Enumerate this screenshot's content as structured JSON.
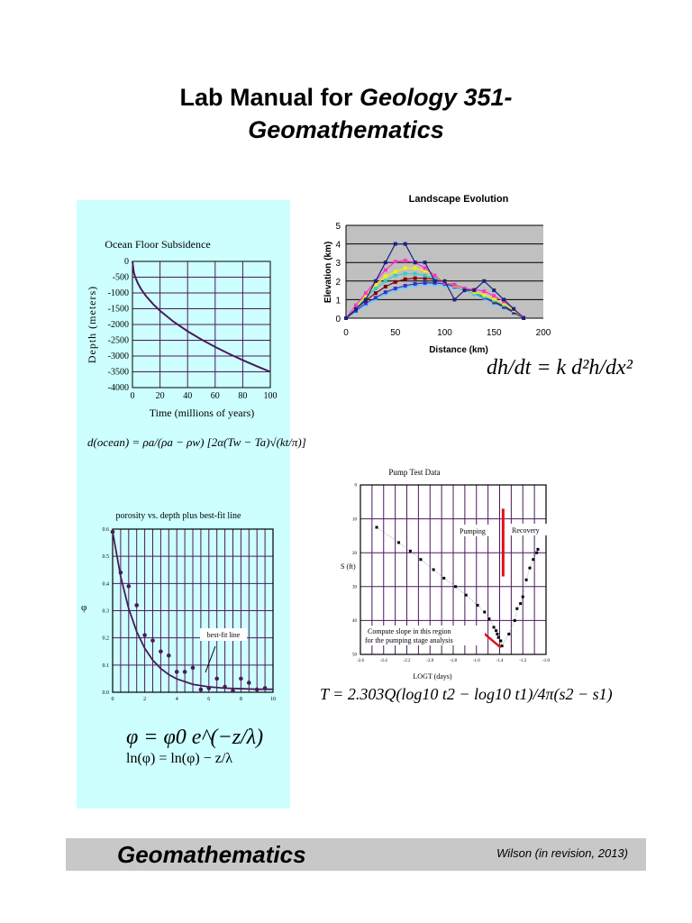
{
  "title": {
    "line1_plain": "Lab Manual for ",
    "line1_italic": "Geology 351-",
    "line2": "Geomathematics"
  },
  "footer": {
    "title": "Geomathematics",
    "credit": "Wilson (in revision, 2013)"
  },
  "colors": {
    "panel": "#ccfffe",
    "plot_line": "#4b1a5a",
    "footer": "#c8c8c8",
    "landscape_bg": "#c0c0c0",
    "red": "#e0101a"
  },
  "equations": {
    "ocean": "d(ocean) = ρa/(ρa − ρw) [2α(Tw − Ta)√(kt/π)]",
    "diffusion": "dh/dt = k d²h/dx²",
    "porosity1": "φ = φ0 e^(−z/λ)",
    "porosity2": "ln(φ) = ln(φ) − z/λ",
    "transmissivity": "T = 2.303Q(log10 t2 − log10 t1)/4π(s2 − s1)"
  },
  "chart_data": [
    {
      "id": "ocean",
      "type": "line",
      "title": "Ocean Floor Subsidence",
      "xlabel": "Time (millions of years)",
      "ylabel": "Depth (meters)",
      "xlim": [
        0,
        100
      ],
      "ylim": [
        -4000,
        0
      ],
      "grid": true,
      "xticks": [
        "0",
        "20",
        "40",
        "60",
        "80",
        "100"
      ],
      "yticks": [
        "0",
        "-500",
        "-1000",
        "-1500",
        "-2000",
        "-2500",
        "-3000",
        "-3500",
        "-4000"
      ],
      "series": [
        {
          "x": [
            0,
            1,
            2,
            4,
            6,
            8,
            10,
            15,
            20,
            30,
            40,
            50,
            60,
            70,
            80,
            90,
            100
          ],
          "y": [
            0,
            -350,
            -495,
            -700,
            -857,
            -990,
            -1107,
            -1356,
            -1565,
            -1917,
            -2214,
            -2475,
            -2711,
            -2928,
            -3130,
            -3320,
            -3500
          ]
        }
      ]
    },
    {
      "id": "porosity",
      "type": "scatter",
      "title": "porosity vs. depth plus best-fit line",
      "ylabel": "φ",
      "annotation": "best-fit line",
      "xlim": [
        0,
        10
      ],
      "ylim": [
        0,
        0.6
      ],
      "grid": true,
      "xticks": [
        "0",
        "2",
        "4",
        "6",
        "8",
        "10"
      ],
      "yticks": [
        "0.0",
        "0.1",
        "0.2",
        "0.3",
        "0.4",
        "0.5",
        "0.6"
      ],
      "points": {
        "x": [
          0,
          0.5,
          1,
          1.5,
          2,
          2.5,
          3,
          3.5,
          4,
          4.5,
          5,
          5.5,
          6,
          6.5,
          7,
          7.5,
          8,
          8.5,
          9,
          9.5
        ],
        "y": [
          0.59,
          0.44,
          0.39,
          0.32,
          0.21,
          0.19,
          0.15,
          0.135,
          0.075,
          0.075,
          0.09,
          0.01,
          0.015,
          0.05,
          0.02,
          0.005,
          0.05,
          0.035,
          0.01,
          0.015
        ]
      },
      "fit": {
        "x": [
          0,
          0.5,
          1,
          1.5,
          2,
          2.5,
          3,
          3.5,
          4,
          5,
          6,
          7,
          8,
          9,
          10
        ],
        "y": [
          0.59,
          0.426,
          0.308,
          0.223,
          0.162,
          0.118,
          0.087,
          0.065,
          0.049,
          0.029,
          0.02,
          0.015,
          0.013,
          0.011,
          0.011
        ]
      }
    },
    {
      "id": "landscape",
      "type": "line",
      "title": "Landscape Evolution",
      "xlabel": "Distance (km)",
      "ylabel": "Elevation (km)",
      "xlim": [
        0,
        200
      ],
      "ylim": [
        0,
        5
      ],
      "grid": true,
      "xticks": [
        "0",
        "50",
        "100",
        "150",
        "200"
      ],
      "yticks": [
        "0",
        "1",
        "2",
        "3",
        "4",
        "5"
      ],
      "x": [
        0,
        10,
        20,
        30,
        40,
        50,
        60,
        70,
        80,
        90,
        100,
        110,
        120,
        130,
        140,
        150,
        160,
        170,
        180
      ],
      "series": [
        {
          "color": "#1a237e",
          "values": [
            0,
            0.5,
            1,
            2,
            3,
            4,
            4,
            3,
            3,
            2,
            2,
            1,
            1.5,
            1.5,
            2,
            1.5,
            1,
            0.5,
            0
          ]
        },
        {
          "color": "#ff33cc",
          "values": [
            0,
            0.7,
            1.35,
            2,
            2.6,
            3.05,
            3.1,
            3,
            2.7,
            2.3,
            1.9,
            1.8,
            1.6,
            1.55,
            1.45,
            1.2,
            0.9,
            0.5,
            0.05
          ]
        },
        {
          "color": "#f2f200",
          "values": [
            0,
            0.6,
            1.2,
            1.8,
            2.25,
            2.5,
            2.7,
            2.7,
            2.55,
            2.3,
            2,
            1.75,
            1.55,
            1.4,
            1.25,
            1.05,
            0.8,
            0.45,
            0
          ]
        },
        {
          "color": "#33cccc",
          "values": [
            0,
            0.55,
            1.1,
            1.6,
            2,
            2.3,
            2.4,
            2.4,
            2.3,
            2.15,
            1.95,
            1.75,
            1.55,
            1.35,
            1.15,
            0.95,
            0.7,
            0.4,
            0
          ]
        },
        {
          "color": "#800000",
          "values": [
            0,
            0.5,
            0.95,
            1.35,
            1.7,
            1.95,
            2.1,
            2.15,
            2.15,
            2.1,
            1.95,
            1.8,
            1.6,
            1.4,
            1.15,
            0.9,
            0.65,
            0.35,
            0
          ]
        },
        {
          "color": "#3333cc",
          "values": [
            0,
            0.4,
            0.8,
            1.1,
            1.4,
            1.6,
            1.75,
            1.85,
            1.9,
            1.9,
            1.85,
            1.7,
            1.55,
            1.35,
            1.1,
            0.85,
            0.6,
            0.3,
            0
          ]
        },
        {
          "color": "#66ccff",
          "values": [
            0,
            0.35,
            0.7,
            1,
            1.3,
            1.5,
            1.65,
            1.75,
            1.8,
            1.8,
            1.75,
            1.65,
            1.5,
            1.3,
            1.05,
            0.8,
            0.55,
            0.3,
            0
          ]
        }
      ]
    },
    {
      "id": "pump",
      "type": "scatter",
      "title": "Pump Test Data",
      "xlabel": "LOGT (days)",
      "ylabel": "S (ft)",
      "xlim": [
        -2.6,
        -1.0
      ],
      "ylim": [
        0,
        50
      ],
      "y_inverted": true,
      "grid": true,
      "xticks": [
        "-2.6",
        "-2.4",
        "-2.2",
        "-2.0",
        "-1.8",
        "-1.6",
        "-1.4",
        "-1.2",
        "-1.0"
      ],
      "yticks": [
        "0",
        "10",
        "20",
        "30",
        "40",
        "50"
      ],
      "labels": {
        "pumping": "Pumping",
        "recovery": "Recovery",
        "note1": "Compute slope in this region",
        "note2": "for the pumping stage analysis"
      },
      "points": {
        "x": [
          -2.46,
          -2.27,
          -2.17,
          -2.08,
          -1.97,
          -1.88,
          -1.78,
          -1.69,
          -1.59,
          -1.53,
          -1.49,
          -1.45,
          -1.43,
          -1.42,
          -1.41,
          -1.39,
          -1.38,
          -1.32,
          -1.27,
          -1.25,
          -1.22,
          -1.2,
          -1.17,
          -1.14,
          -1.11,
          -1.08,
          -1.07
        ],
        "y": [
          12.5,
          17,
          19.5,
          22,
          25,
          27.5,
          30,
          32.5,
          35.5,
          37.5,
          39.5,
          42,
          43,
          44,
          45,
          46,
          47.5,
          44,
          40,
          36.5,
          35,
          33,
          28,
          24.5,
          22,
          20,
          19
        ]
      },
      "divider": {
        "x": -1.37,
        "y": [
          7,
          27
        ]
      },
      "slope_line": {
        "x": [
          -1.58,
          -1.39
        ],
        "y": [
          42.5,
          48
        ]
      }
    }
  ]
}
